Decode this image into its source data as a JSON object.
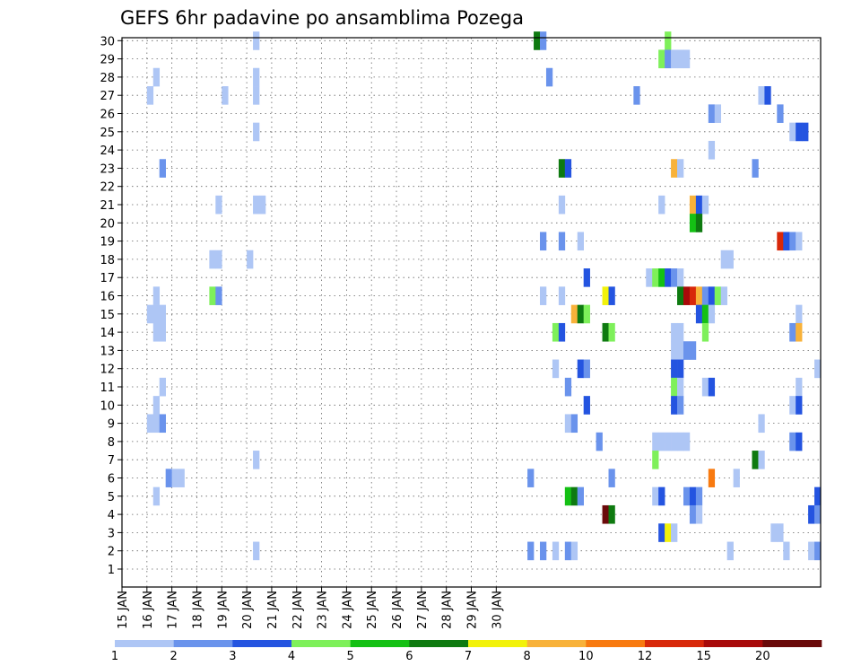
{
  "chart_data": {
    "type": "heatmap",
    "title": "GEFS 6hr padavine po ansamblima Pozega",
    "x_tick_labels": [
      "15 JAN",
      "16 JAN",
      "17 JAN",
      "18 JAN",
      "19 JAN",
      "20 JAN",
      "21 JAN",
      "22 JAN",
      "23 JAN",
      "24 JAN",
      "25 JAN",
      "26 JAN",
      "27 JAN",
      "28 JAN",
      "29 JAN",
      "30 JAN"
    ],
    "y_tick_labels": [
      "1",
      "2",
      "3",
      "4",
      "5",
      "6",
      "7",
      "8",
      "9",
      "10",
      "11",
      "12",
      "13",
      "14",
      "15",
      "16",
      "17",
      "18",
      "19",
      "20",
      "21",
      "22",
      "23",
      "24",
      "25",
      "26",
      "27",
      "28",
      "29",
      "30"
    ],
    "x_unit": "6-hour step from 15 JAN 00Z",
    "y_unit": "ensemble member",
    "grid": true,
    "legend_labels": [
      "1",
      "2",
      "3",
      "4",
      "5",
      "6",
      "7",
      "8",
      "10",
      "12",
      "15",
      "20"
    ],
    "legend_colors": [
      "#aec6f5",
      "#6a93ec",
      "#2454e0",
      "#7ef05a",
      "#14c014",
      "#0e7a10",
      "#f2f20a",
      "#f8b23a",
      "#f87a10",
      "#d8280a",
      "#a80a0a",
      "#6a0a0a"
    ],
    "cells": [
      [
        21,
        30,
        0
      ],
      [
        66,
        30,
        5
      ],
      [
        67,
        30,
        1
      ],
      [
        87,
        30,
        3
      ],
      [
        86,
        29,
        3
      ],
      [
        87,
        29,
        1
      ],
      [
        88,
        29,
        0
      ],
      [
        89,
        29,
        0
      ],
      [
        90,
        29,
        0
      ],
      [
        5,
        28,
        0
      ],
      [
        21,
        28,
        0
      ],
      [
        68,
        28,
        1
      ],
      [
        4,
        27,
        0
      ],
      [
        21,
        27,
        0
      ],
      [
        16,
        27,
        0
      ],
      [
        82,
        27,
        1
      ],
      [
        102,
        27,
        0
      ],
      [
        103,
        27,
        2
      ],
      [
        94,
        26,
        1
      ],
      [
        95,
        26,
        0
      ],
      [
        105,
        26,
        1
      ],
      [
        21,
        25,
        0
      ],
      [
        107,
        25,
        0
      ],
      [
        108,
        25,
        2
      ],
      [
        109,
        25,
        2
      ],
      [
        94,
        24,
        0
      ],
      [
        6,
        23,
        1
      ],
      [
        70,
        23,
        5
      ],
      [
        71,
        23,
        2
      ],
      [
        88,
        23,
        7
      ],
      [
        89,
        23,
        0
      ],
      [
        101,
        23,
        1
      ],
      [
        21,
        21,
        0
      ],
      [
        22,
        21,
        0
      ],
      [
        15,
        21,
        0
      ],
      [
        70,
        21,
        0
      ],
      [
        86,
        21,
        0
      ],
      [
        91,
        21,
        7
      ],
      [
        92,
        21,
        2
      ],
      [
        93,
        21,
        0
      ],
      [
        91,
        20,
        4
      ],
      [
        92,
        20,
        5
      ],
      [
        67,
        19,
        1
      ],
      [
        70,
        19,
        1
      ],
      [
        73,
        19,
        0
      ],
      [
        105,
        19,
        9
      ],
      [
        106,
        19,
        2
      ],
      [
        107,
        19,
        1
      ],
      [
        108,
        19,
        0
      ],
      [
        20,
        18,
        0
      ],
      [
        14,
        18,
        0
      ],
      [
        15,
        18,
        0
      ],
      [
        96,
        18,
        0
      ],
      [
        97,
        18,
        0
      ],
      [
        74,
        17,
        2
      ],
      [
        84,
        17,
        0
      ],
      [
        85,
        17,
        3
      ],
      [
        86,
        17,
        4
      ],
      [
        87,
        17,
        2
      ],
      [
        88,
        17,
        1
      ],
      [
        89,
        17,
        0
      ],
      [
        5,
        16,
        0
      ],
      [
        14,
        16,
        3
      ],
      [
        15,
        16,
        1
      ],
      [
        67,
        16,
        0
      ],
      [
        70,
        16,
        0
      ],
      [
        77,
        16,
        6
      ],
      [
        78,
        16,
        2
      ],
      [
        89,
        16,
        5
      ],
      [
        90,
        16,
        10
      ],
      [
        91,
        16,
        9
      ],
      [
        92,
        16,
        7
      ],
      [
        93,
        16,
        1
      ],
      [
        94,
        16,
        2
      ],
      [
        95,
        16,
        3
      ],
      [
        96,
        16,
        0
      ],
      [
        4,
        15,
        0
      ],
      [
        5,
        15,
        0
      ],
      [
        6,
        15,
        0
      ],
      [
        72,
        15,
        7
      ],
      [
        73,
        15,
        5
      ],
      [
        74,
        15,
        3
      ],
      [
        92,
        15,
        2
      ],
      [
        93,
        15,
        4
      ],
      [
        94,
        15,
        0
      ],
      [
        108,
        15,
        0
      ],
      [
        5,
        14,
        0
      ],
      [
        6,
        14,
        0
      ],
      [
        69,
        14,
        3
      ],
      [
        70,
        14,
        2
      ],
      [
        77,
        14,
        5
      ],
      [
        78,
        14,
        3
      ],
      [
        88,
        14,
        0
      ],
      [
        89,
        14,
        0
      ],
      [
        93,
        14,
        3
      ],
      [
        107,
        14,
        1
      ],
      [
        108,
        14,
        7
      ],
      [
        88,
        13,
        0
      ],
      [
        89,
        13,
        0
      ],
      [
        90,
        13,
        1
      ],
      [
        91,
        13,
        1
      ],
      [
        69,
        12,
        0
      ],
      [
        73,
        12,
        2
      ],
      [
        74,
        12,
        1
      ],
      [
        88,
        12,
        2
      ],
      [
        89,
        12,
        2
      ],
      [
        111,
        12,
        0
      ],
      [
        6,
        11,
        0
      ],
      [
        71,
        11,
        1
      ],
      [
        88,
        11,
        3
      ],
      [
        89,
        11,
        0
      ],
      [
        93,
        11,
        0
      ],
      [
        94,
        11,
        2
      ],
      [
        108,
        11,
        0
      ],
      [
        5,
        10,
        0
      ],
      [
        74,
        10,
        2
      ],
      [
        88,
        10,
        2
      ],
      [
        89,
        10,
        1
      ],
      [
        107,
        10,
        0
      ],
      [
        108,
        10,
        2
      ],
      [
        4,
        9,
        0
      ],
      [
        5,
        9,
        0
      ],
      [
        6,
        9,
        1
      ],
      [
        71,
        9,
        0
      ],
      [
        72,
        9,
        1
      ],
      [
        102,
        9,
        0
      ],
      [
        76,
        8,
        1
      ],
      [
        85,
        8,
        0
      ],
      [
        86,
        8,
        0
      ],
      [
        87,
        8,
        0
      ],
      [
        88,
        8,
        0
      ],
      [
        89,
        8,
        0
      ],
      [
        90,
        8,
        0
      ],
      [
        107,
        8,
        1
      ],
      [
        108,
        8,
        2
      ],
      [
        21,
        7,
        0
      ],
      [
        85,
        7,
        3
      ],
      [
        101,
        7,
        5
      ],
      [
        102,
        7,
        0
      ],
      [
        7,
        6,
        1
      ],
      [
        8,
        6,
        0
      ],
      [
        9,
        6,
        0
      ],
      [
        65,
        6,
        1
      ],
      [
        78,
        6,
        1
      ],
      [
        98,
        6,
        0
      ],
      [
        94,
        6,
        8
      ],
      [
        5,
        5,
        0
      ],
      [
        71,
        5,
        4
      ],
      [
        72,
        5,
        5
      ],
      [
        73,
        5,
        1
      ],
      [
        85,
        5,
        0
      ],
      [
        86,
        5,
        2
      ],
      [
        90,
        5,
        1
      ],
      [
        91,
        5,
        2
      ],
      [
        92,
        5,
        1
      ],
      [
        111,
        5,
        2
      ],
      [
        77,
        4,
        11
      ],
      [
        78,
        4,
        5
      ],
      [
        91,
        4,
        1
      ],
      [
        92,
        4,
        0
      ],
      [
        110,
        4,
        2
      ],
      [
        111,
        4,
        1
      ],
      [
        86,
        3,
        2
      ],
      [
        87,
        3,
        6
      ],
      [
        88,
        3,
        0
      ],
      [
        104,
        3,
        0
      ],
      [
        105,
        3,
        0
      ],
      [
        21,
        2,
        0
      ],
      [
        65,
        2,
        1
      ],
      [
        67,
        2,
        1
      ],
      [
        69,
        2,
        0
      ],
      [
        71,
        2,
        1
      ],
      [
        72,
        2,
        0
      ],
      [
        97,
        2,
        0
      ],
      [
        106,
        2,
        0
      ],
      [
        110,
        2,
        0
      ],
      [
        111,
        2,
        1
      ]
    ]
  }
}
